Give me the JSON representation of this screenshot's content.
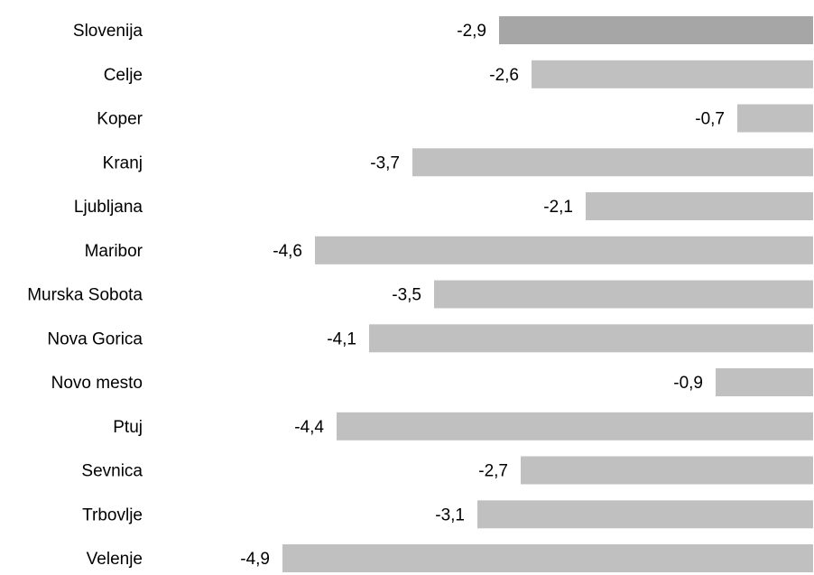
{
  "chart_data": {
    "type": "bar",
    "orientation": "horizontal",
    "categories": [
      "Slovenija",
      "Celje",
      "Koper",
      "Kranj",
      "Ljubljana",
      "Maribor",
      "Murska Sobota",
      "Nova Gorica",
      "Novo mesto",
      "Ptuj",
      "Sevnica",
      "Trbovlje",
      "Velenje"
    ],
    "values": [
      -2.9,
      -2.6,
      -0.7,
      -3.7,
      -2.1,
      -4.6,
      -3.5,
      -4.1,
      -0.9,
      -4.4,
      -2.7,
      -3.1,
      -4.9
    ],
    "value_labels": [
      "-2,9",
      "-2,6",
      "-0,7",
      "-3,7",
      "-2,1",
      "-4,6",
      "-3,5",
      "-4,1",
      "-0,9",
      "-4,4",
      "-2,7",
      "-3,1",
      "-4,9"
    ],
    "title": "",
    "xlabel": "",
    "ylabel": "",
    "xlim": [
      -4.9,
      0
    ],
    "grid": false,
    "legend": "none",
    "colors": {
      "highlight_bar": "#A6A6A6",
      "bar": "#C0C0C0",
      "text": "#000000"
    },
    "highlight_index": 0
  }
}
